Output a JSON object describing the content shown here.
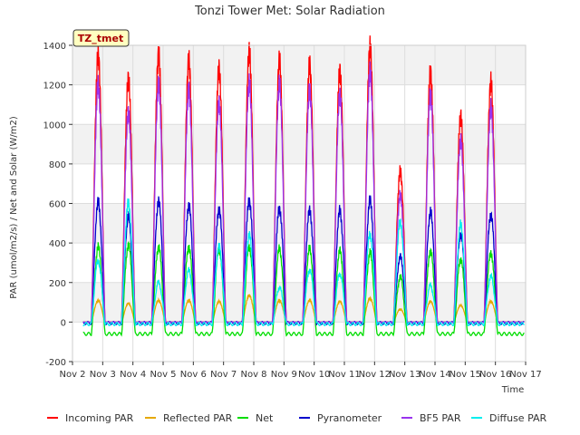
{
  "chart_data": {
    "type": "line",
    "title": "Tonzi Tower Met: Solar Radiation",
    "ylabel": "PAR (umol/m2/s) / Net and Solar (W/m2)",
    "xlabel": "Time",
    "annotation": "TZ_tmet",
    "xlim": [
      2,
      17
    ],
    "ylim": [
      -200,
      1400
    ],
    "yticks": [
      -200,
      0,
      200,
      400,
      600,
      800,
      1000,
      1200,
      1400
    ],
    "xticks": [
      {
        "day": 2,
        "label": "Nov 2"
      },
      {
        "day": 3,
        "label": "Nov 3"
      },
      {
        "day": 4,
        "label": "Nov 4"
      },
      {
        "day": 5,
        "label": "Nov 5"
      },
      {
        "day": 6,
        "label": "Nov 6"
      },
      {
        "day": 7,
        "label": "Nov 7"
      },
      {
        "day": 8,
        "label": "Nov 8"
      },
      {
        "day": 9,
        "label": "Nov 9"
      },
      {
        "day": 10,
        "label": "Nov 10"
      },
      {
        "day": 11,
        "label": "Nov 11"
      },
      {
        "day": 12,
        "label": "Nov 12"
      },
      {
        "day": 13,
        "label": "Nov 13"
      },
      {
        "day": 14,
        "label": "Nov 14"
      },
      {
        "day": 15,
        "label": "Nov 15"
      },
      {
        "day": 16,
        "label": "Nov 16"
      },
      {
        "day": 17,
        "label": "Nov 17"
      }
    ],
    "grid": true,
    "legend_position": "bottom",
    "data_range": [
      2.35,
      16.95
    ],
    "peak_days": [
      2.85,
      3.85,
      4.85,
      5.85,
      6.85,
      7.85,
      8.85,
      9.85,
      10.85,
      11.85,
      12.85,
      13.85,
      14.85,
      15.85
    ],
    "series": [
      {
        "name": "Incoming PAR",
        "color": "#ff0000",
        "night": 0,
        "peaks": [
          1350,
          1230,
          1350,
          1320,
          1280,
          1370,
          1320,
          1300,
          1270,
          1390,
          760,
          1260,
          1040,
          1210
        ]
      },
      {
        "name": "Reflected PAR",
        "color": "#e6a800",
        "night": 0,
        "peaks": [
          110,
          95,
          110,
          110,
          105,
          135,
          110,
          110,
          105,
          120,
          65,
          105,
          85,
          105
        ]
      },
      {
        "name": "Net",
        "color": "#00dd00",
        "night": -60,
        "peaks": [
          380,
          390,
          380,
          380,
          370,
          380,
          370,
          370,
          360,
          350,
          230,
          360,
          320,
          350
        ]
      },
      {
        "name": "Pyranometer",
        "color": "#0000cc",
        "night": -5,
        "peaks": [
          605,
          530,
          610,
          590,
          570,
          615,
          575,
          565,
          560,
          615,
          330,
          555,
          440,
          545
        ]
      },
      {
        "name": "BF5 PAR",
        "color": "#9933ee",
        "night": 0,
        "peaks": [
          1200,
          1060,
          1200,
          1170,
          1110,
          1210,
          1200,
          1170,
          1150,
          1260,
          640,
          1150,
          920,
          1080
        ]
      },
      {
        "name": "Diffuse PAR",
        "color": "#00eeee",
        "night": -10,
        "peaks": [
          310,
          600,
          200,
          260,
          380,
          440,
          175,
          265,
          245,
          445,
          505,
          185,
          490,
          230
        ]
      }
    ]
  }
}
